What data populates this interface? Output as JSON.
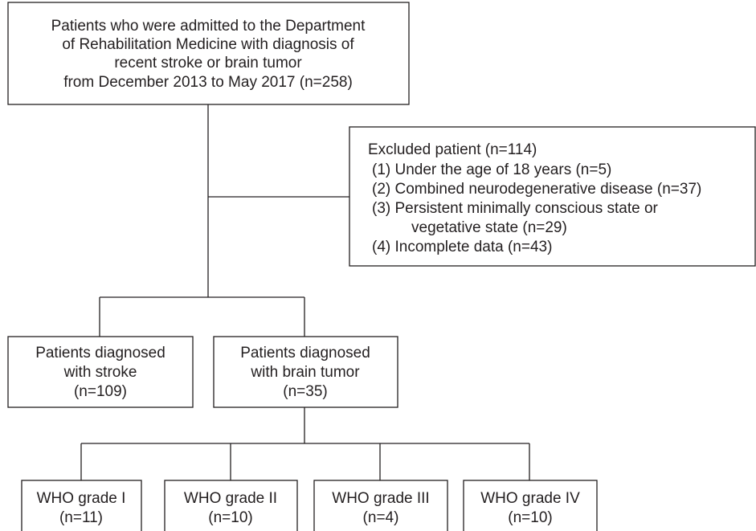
{
  "top": {
    "lines": [
      "Patients who were admitted to the Department",
      "of Rehabilitation Medicine with diagnosis of",
      "recent stroke or brain tumor",
      "from December 2013 to May 2017 (n=258)"
    ]
  },
  "excluded": {
    "title": "Excluded patient (n=114)",
    "items": [
      {
        "lines": [
          "(1) Under the age of 18 years (n=5)"
        ]
      },
      {
        "lines": [
          "(2) Combined neurodegenerative disease (n=37)"
        ]
      },
      {
        "lines": [
          "(3) Persistent minimally conscious state or",
          "vegetative state (n=29)"
        ]
      },
      {
        "lines": [
          "(4) Incomplete data (n=43)"
        ]
      }
    ]
  },
  "groups": [
    {
      "lines": [
        "Patients diagnosed",
        "with stroke",
        "(n=109)"
      ]
    },
    {
      "lines": [
        "Patients diagnosed",
        "with brain tumor",
        "(n=35)"
      ]
    }
  ],
  "grades": [
    {
      "lines": [
        "WHO grade I",
        "(n=11)"
      ]
    },
    {
      "lines": [
        "WHO grade II",
        "(n=10)"
      ]
    },
    {
      "lines": [
        "WHO grade III",
        "(n=4)"
      ]
    },
    {
      "lines": [
        "WHO grade IV",
        "(n=10)"
      ]
    }
  ]
}
